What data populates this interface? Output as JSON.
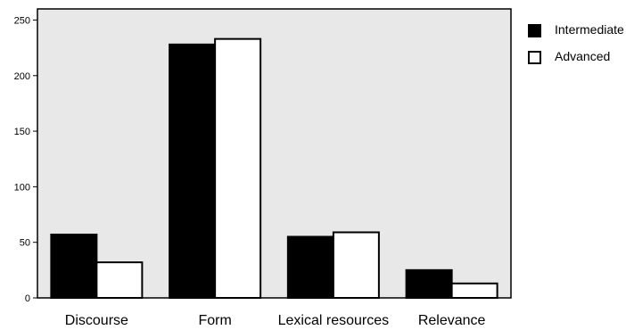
{
  "chart_data": {
    "type": "bar",
    "categories": [
      "Discourse",
      "Form",
      "Lexical resources",
      "Relevance"
    ],
    "series": [
      {
        "name": "Intermediate",
        "values": [
          57,
          228,
          55,
          25
        ],
        "fill": "#000000"
      },
      {
        "name": "Advanced",
        "values": [
          32,
          233,
          59,
          13
        ],
        "fill": "#ffffff"
      }
    ],
    "yticks": [
      0,
      50,
      100,
      150,
      200,
      250
    ],
    "ylim": [
      0,
      260
    ],
    "legend_position": "right",
    "plot_background": "#e8e8e8",
    "grid": false
  }
}
